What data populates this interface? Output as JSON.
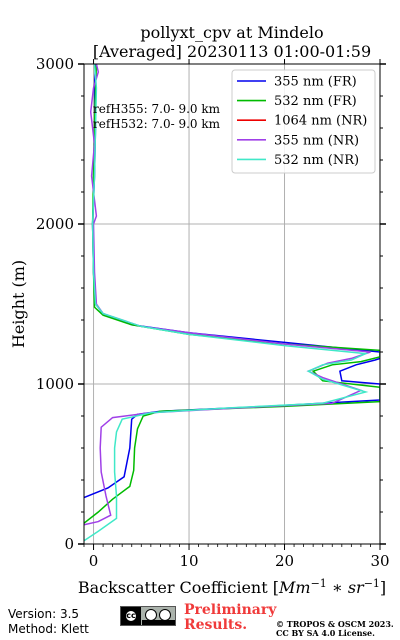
{
  "title_line1": "pollyxt_cpv at Mindelo",
  "title_line2": "[Averaged] 20230113 01:00-01:59",
  "annotations": {
    "ref355": "refH355:  7.0- 9.0 km",
    "ref532": "refH532:  7.0- 9.0 km"
  },
  "footer": {
    "version": "Version: 3.5",
    "method": "Method: Klett",
    "preliminary_line1": "Preliminary",
    "preliminary_line2": "Results.",
    "copyright_line1": "© TROPOS & OSCM 2023.",
    "copyright_line2": "CC BY SA 4.0 License.",
    "preliminary_color": "#f03a3a"
  },
  "chart_data": {
    "type": "line",
    "title": "pollyxt_cpv at Mindelo [Averaged] 20230113 01:00-01:59",
    "xlabel": "Backscatter Coefficient [Mm^-1 * sr^-1]",
    "ylabel": "Height (m)",
    "xlim": [
      -1,
      30
    ],
    "ylim": [
      0,
      3000
    ],
    "xticks": [
      0,
      10,
      20,
      30
    ],
    "yticks": [
      0,
      1000,
      2000,
      3000
    ],
    "grid": true,
    "legend_position": "top-right",
    "series": [
      {
        "name": "355 nm (FR)",
        "color": "#0000ee",
        "points": [
          [
            -1,
            290
          ],
          [
            1.5,
            350
          ],
          [
            3.2,
            420
          ],
          [
            3.8,
            600
          ],
          [
            4.0,
            780
          ],
          [
            4.6,
            810
          ],
          [
            7,
            830
          ],
          [
            18,
            860
          ],
          [
            30,
            900
          ],
          [
            30,
            1000
          ],
          [
            26,
            1020
          ],
          [
            25.8,
            1080
          ],
          [
            27.5,
            1120
          ],
          [
            29.5,
            1150
          ],
          [
            30,
            1160
          ],
          [
            30,
            1200
          ],
          [
            20,
            1260
          ],
          [
            10,
            1320
          ],
          [
            4,
            1370
          ],
          [
            1,
            1440
          ],
          [
            0.2,
            1500
          ],
          [
            0,
            1700
          ],
          [
            -0.1,
            2000
          ],
          [
            0.1,
            2300
          ],
          [
            0.2,
            2600
          ],
          [
            0.1,
            2850
          ],
          [
            0.2,
            3000
          ]
        ]
      },
      {
        "name": "532 nm (FR)",
        "color": "#00bb00",
        "points": [
          [
            -1,
            130
          ],
          [
            0.5,
            200
          ],
          [
            2,
            280
          ],
          [
            3.8,
            360
          ],
          [
            4.2,
            460
          ],
          [
            4.3,
            600
          ],
          [
            4.6,
            720
          ],
          [
            5.2,
            800
          ],
          [
            7,
            830
          ],
          [
            20,
            860
          ],
          [
            30,
            890
          ],
          [
            30,
            980
          ],
          [
            24,
            1020
          ],
          [
            23,
            1080
          ],
          [
            25,
            1120
          ],
          [
            28,
            1140
          ],
          [
            30,
            1170
          ],
          [
            30,
            1210
          ],
          [
            20,
            1250
          ],
          [
            10,
            1310
          ],
          [
            4,
            1370
          ],
          [
            1,
            1430
          ],
          [
            0.1,
            1480
          ],
          [
            0,
            1700
          ],
          [
            -0.1,
            2000
          ],
          [
            0,
            2300
          ],
          [
            0.1,
            2600
          ],
          [
            0.2,
            2850
          ],
          [
            0.3,
            3000
          ]
        ]
      },
      {
        "name": "1064 nm (NR)",
        "color": "#ee0000",
        "points": []
      },
      {
        "name": "355 nm (NR)",
        "color": "#a040e8",
        "points": [
          [
            -1,
            120
          ],
          [
            0.5,
            140
          ],
          [
            1.8,
            180
          ],
          [
            1.3,
            300
          ],
          [
            0.8,
            450
          ],
          [
            0.7,
            600
          ],
          [
            0.8,
            730
          ],
          [
            2,
            790
          ],
          [
            6,
            820
          ],
          [
            15,
            850
          ],
          [
            25,
            880
          ],
          [
            28,
            960
          ],
          [
            24,
            1040
          ],
          [
            22.5,
            1080
          ],
          [
            24.5,
            1130
          ],
          [
            27,
            1160
          ],
          [
            29,
            1200
          ],
          [
            20,
            1250
          ],
          [
            10,
            1320
          ],
          [
            5,
            1360
          ],
          [
            1,
            1440
          ],
          [
            0.3,
            1500
          ],
          [
            0.1,
            1700
          ],
          [
            0,
            2000
          ],
          [
            0.3,
            2050
          ],
          [
            -0.2,
            2300
          ],
          [
            0.1,
            2500
          ],
          [
            -0.3,
            2700
          ],
          [
            0,
            2850
          ],
          [
            0.5,
            2950
          ],
          [
            0.3,
            3000
          ]
        ]
      },
      {
        "name": "532 nm (NR)",
        "color": "#40e8c8",
        "points": [
          [
            -1,
            20
          ],
          [
            0.5,
            80
          ],
          [
            2.4,
            160
          ],
          [
            2.4,
            300
          ],
          [
            2.2,
            450
          ],
          [
            2.2,
            600
          ],
          [
            2.4,
            700
          ],
          [
            3,
            780
          ],
          [
            6,
            820
          ],
          [
            14,
            850
          ],
          [
            24,
            880
          ],
          [
            28.5,
            950
          ],
          [
            24,
            1030
          ],
          [
            22.5,
            1080
          ],
          [
            24,
            1120
          ],
          [
            27,
            1150
          ],
          [
            28.5,
            1190
          ],
          [
            20,
            1240
          ],
          [
            10,
            1310
          ],
          [
            5,
            1360
          ],
          [
            1,
            1440
          ],
          [
            0.2,
            1500
          ],
          [
            0,
            1700
          ],
          [
            -0.1,
            2000
          ],
          [
            0.1,
            2300
          ],
          [
            0.2,
            2600
          ],
          [
            0.3,
            2850
          ],
          [
            0.1,
            3000
          ]
        ]
      }
    ]
  }
}
